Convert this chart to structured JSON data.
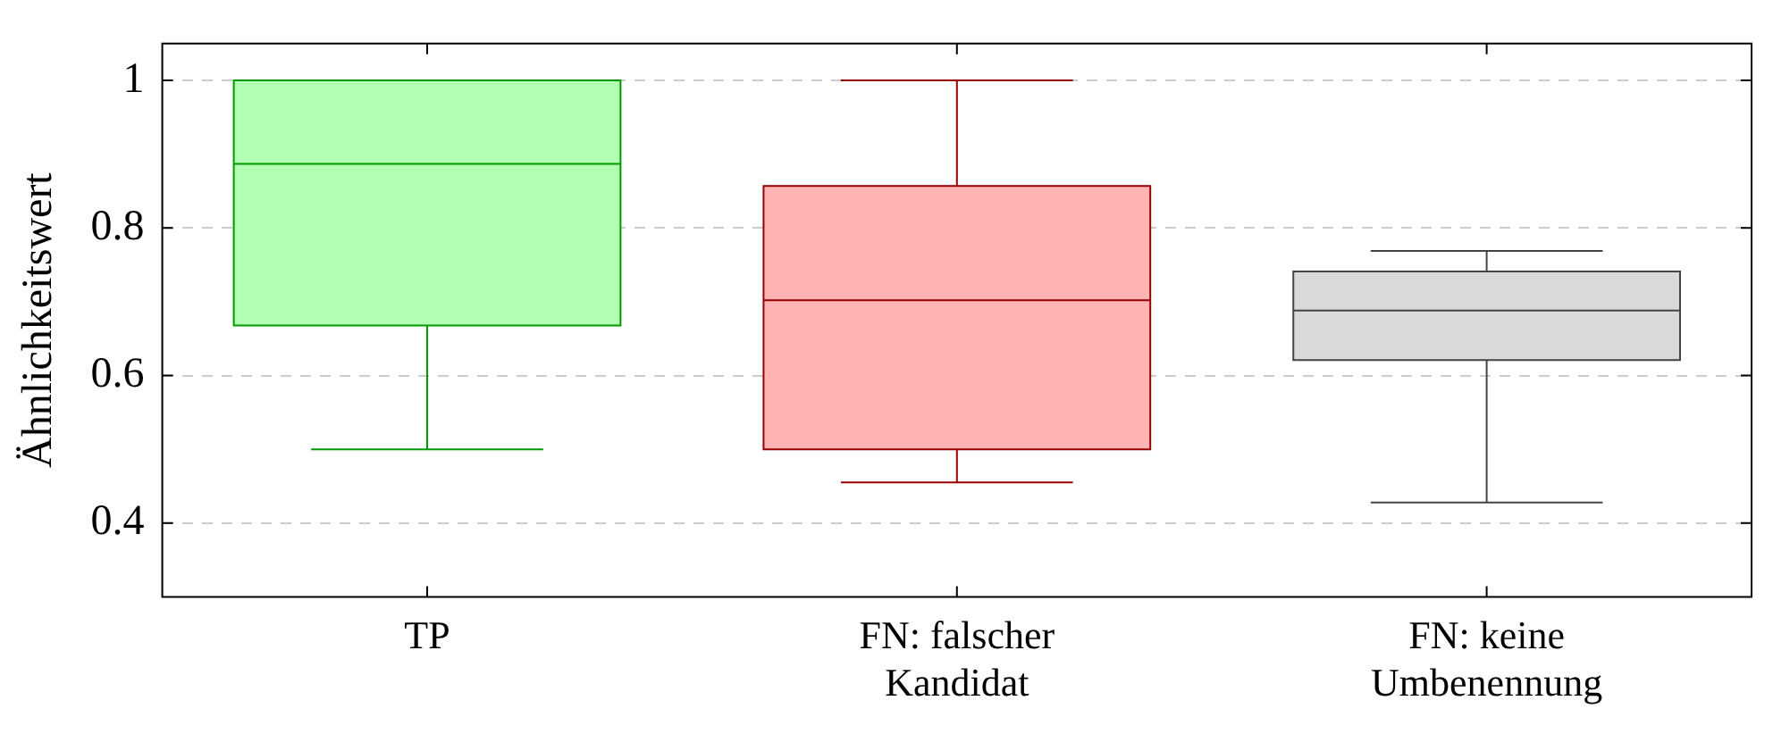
{
  "chart_data": {
    "type": "box",
    "ylabel": "Ähnlichkeitswert",
    "categories": [
      "TP",
      "FN: falscher Kandidat",
      "FN: keine Umbenennung"
    ],
    "boxes": [
      {
        "low": 0.5,
        "q1": 0.668,
        "median": 0.887,
        "q3": 1,
        "high": 1
      },
      {
        "low": 0.455,
        "q1": 0.5,
        "median": 0.702,
        "q3": 0.857,
        "high": 1
      },
      {
        "low": 0.428,
        "q1": 0.621,
        "median": 0.688,
        "q3": 0.741,
        "high": 0.769
      }
    ],
    "colors": [
      "#b3ffb3",
      "#ffb3b3",
      "#d9d9d9"
    ],
    "ylim": [
      0.3,
      1.05
    ],
    "yticks": [
      0.4,
      0.6,
      0.8,
      1
    ],
    "grid": "y",
    "legend": false
  }
}
